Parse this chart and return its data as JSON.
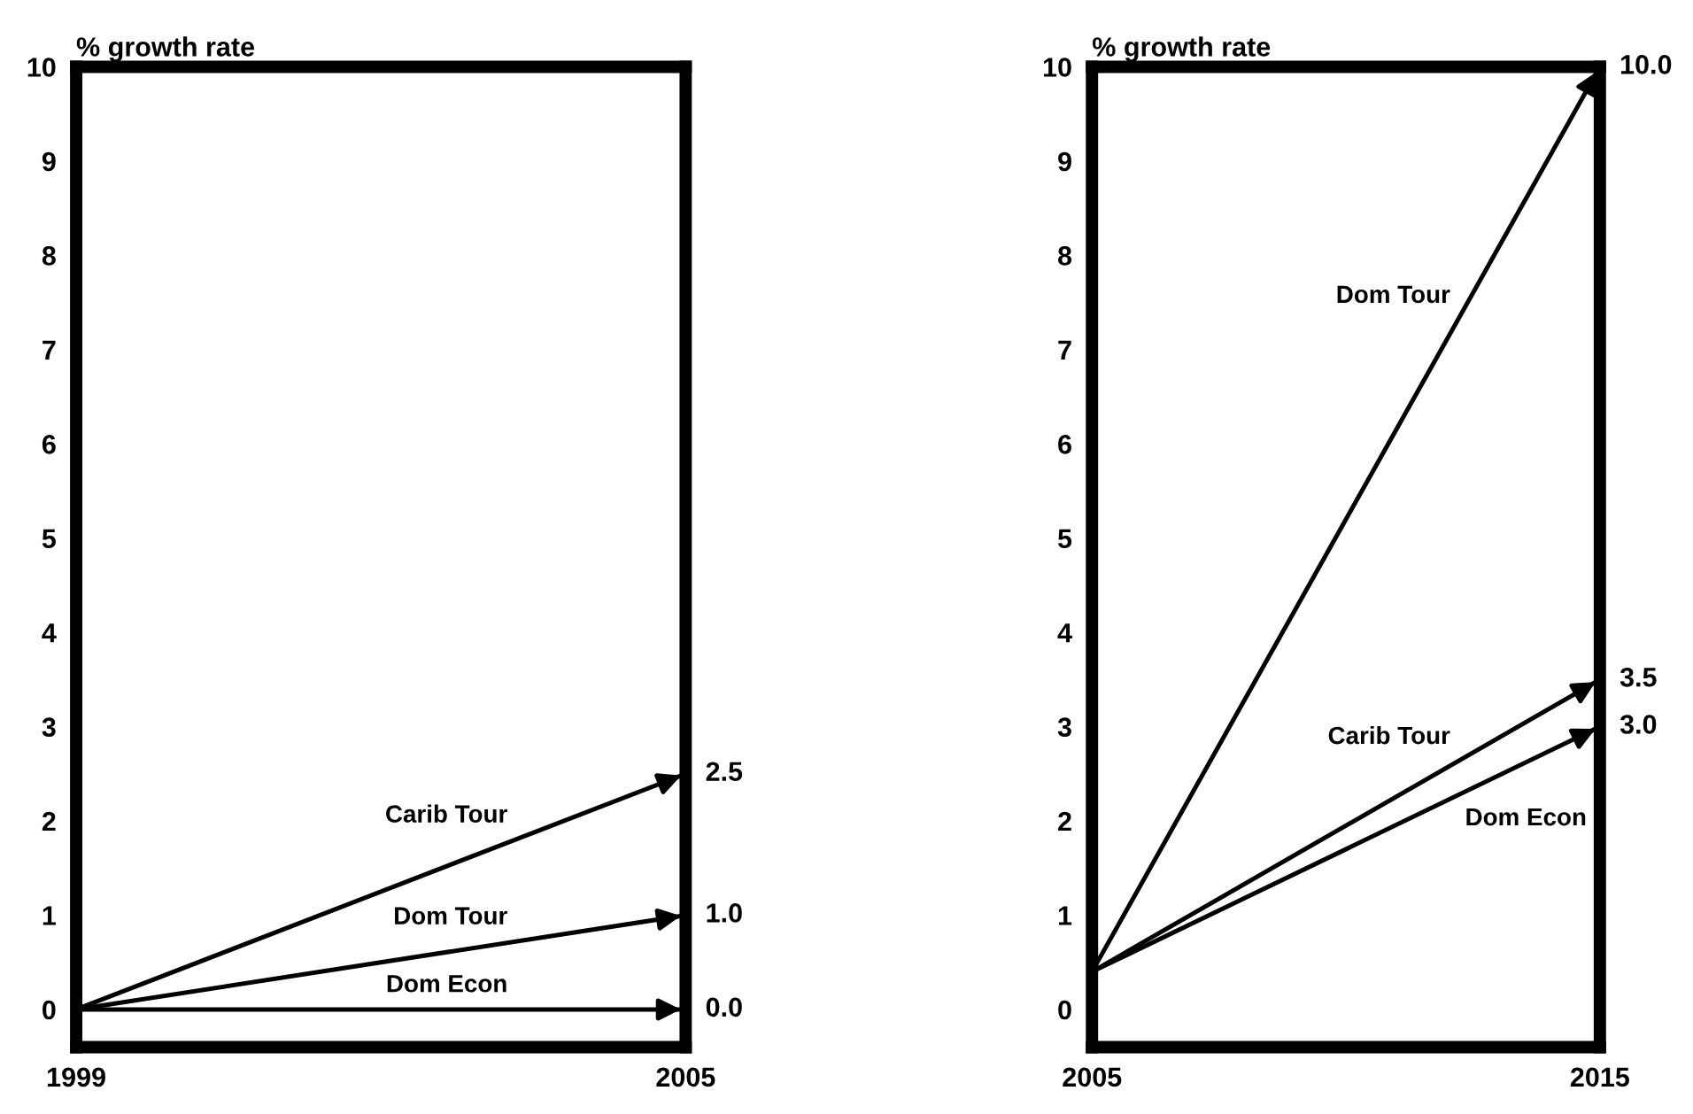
{
  "chart_data": [
    {
      "type": "line",
      "ylabel": "% growth rate",
      "x": [
        1999,
        2005
      ],
      "xlim": [
        1999,
        2005
      ],
      "xticks": [
        1999,
        2005
      ],
      "ylim": [
        -0.4,
        10
      ],
      "yticks": [
        0,
        1,
        2,
        3,
        4,
        5,
        6,
        7,
        8,
        9,
        10
      ],
      "grid": false,
      "legend": false,
      "series": [
        {
          "name": "Carib Tour",
          "color": "#000000",
          "values": [
            0,
            2.5
          ],
          "value_labels": [
            null,
            "2.5"
          ]
        },
        {
          "name": "Dom Tour",
          "color": "#000000",
          "values": [
            0,
            1.0
          ],
          "value_labels": [
            null,
            "1.0"
          ]
        },
        {
          "name": "Dom Econ",
          "color": "#000000",
          "values": [
            0,
            0.0
          ],
          "value_labels": [
            null,
            "0.0"
          ]
        }
      ]
    },
    {
      "type": "line",
      "ylabel": "% growth rate",
      "x": [
        2005,
        2015
      ],
      "xlim": [
        2005,
        2015
      ],
      "xticks": [
        2005,
        2015
      ],
      "ylim": [
        -0.4,
        10
      ],
      "yticks": [
        0,
        1,
        2,
        3,
        4,
        5,
        6,
        7,
        8,
        9,
        10
      ],
      "grid": false,
      "legend": false,
      "series": [
        {
          "name": "Dom Tour",
          "color": "#000000",
          "values": [
            0.4,
            10.0
          ],
          "value_labels": [
            null,
            "10.0"
          ]
        },
        {
          "name": "Carib Tour",
          "color": "#000000",
          "values": [
            0.4,
            3.5
          ],
          "value_labels": [
            null,
            "3.5"
          ]
        },
        {
          "name": "Dom Econ",
          "color": "#000000",
          "values": [
            0.4,
            3.0
          ],
          "value_labels": [
            null,
            "3.0"
          ]
        }
      ]
    }
  ]
}
